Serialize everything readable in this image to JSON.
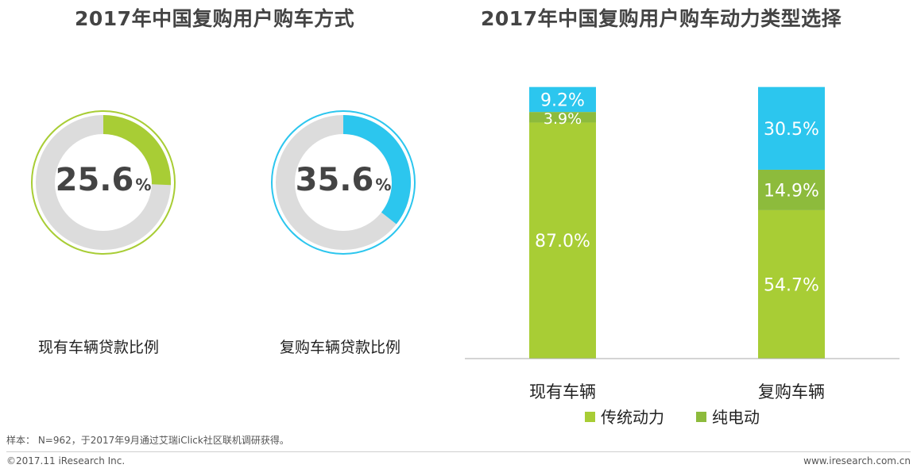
{
  "titles": {
    "left": "2017年中国复购用户购车方式",
    "right": "2017年中国复购用户购车动力类型选择"
  },
  "colors": {
    "green": "#a8cd35",
    "dark_green": "#8dbb3c",
    "cyan": "#2cc6ee",
    "ring_gray": "#dcdcdc"
  },
  "chart_data": [
    {
      "type": "pie",
      "title": "现有车辆贷款比例",
      "value_label": "25.6",
      "unit": "%",
      "values": [
        25.6,
        74.4
      ],
      "color": "#a8cd35"
    },
    {
      "type": "pie",
      "title": "复购车辆贷款比例",
      "value_label": "35.6",
      "unit": "%",
      "values": [
        35.6,
        64.4
      ],
      "color": "#2cc6ee"
    },
    {
      "type": "bar",
      "stacked": true,
      "categories": [
        "现有车辆",
        "复购车辆"
      ],
      "series": [
        {
          "name": "传统动力",
          "values": [
            87.0,
            54.7
          ],
          "labels": [
            "87.0%",
            "54.7%"
          ],
          "color": "#a8cd35"
        },
        {
          "name": "纯电动",
          "values": [
            3.9,
            14.9
          ],
          "labels": [
            "3.9%",
            "14.9%"
          ],
          "color": "#8dbb3c"
        },
        {
          "name": "",
          "values": [
            9.2,
            30.5
          ],
          "labels": [
            "9.2%",
            "30.5%"
          ],
          "color": "#2cc6ee"
        }
      ],
      "ylim": [
        0,
        100
      ],
      "legend": "bottom"
    }
  ],
  "footer": {
    "note": "样本： N=962，于2017年9月通过艾瑞iClick社区联机调研获得。",
    "copyright": "©2017.11 iResearch Inc.",
    "site": "www.iresearch.com.cn"
  }
}
